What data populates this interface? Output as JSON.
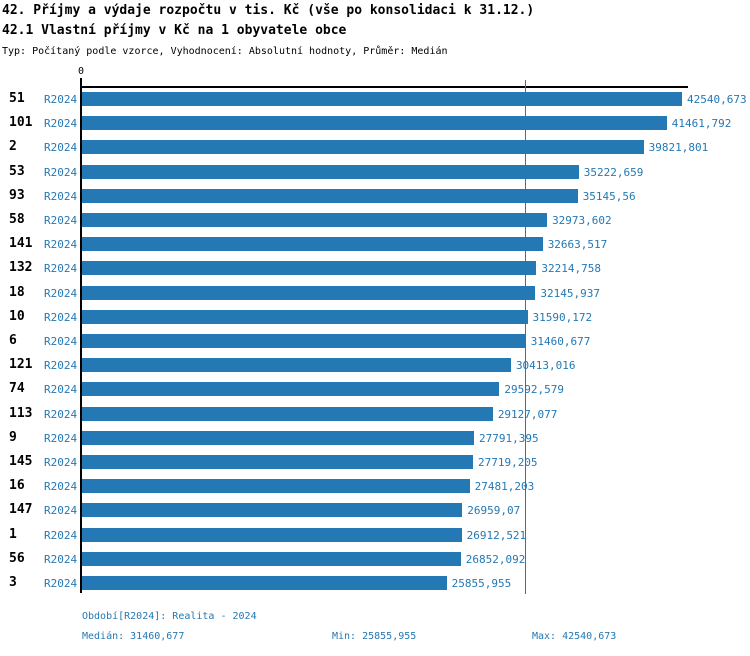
{
  "chart_data": {
    "type": "bar",
    "orientation": "horizontal",
    "title": "42. Příjmy a výdaje rozpočtu v tis. Kč (vše po konsolidaci k 31.12.)",
    "subtitle": "42.1 Vlastní příjmy v Kč na 1 obyvatele obce",
    "meta": "Typ: Počítaný podle vzorce, Vyhodnocení: Absolutní hodnoty, Průměr: Medián",
    "series_label": "R2024",
    "axis_zero_label": "0",
    "xlim": [
      0,
      42540.673
    ],
    "median_value": 31460.677,
    "min_value": 25855.955,
    "max_value": 42540.673,
    "bar_color": "#2478B4",
    "median_line_color": "#2478B4",
    "legend_position": "bottom",
    "grid": "median-line-only",
    "rows": [
      {
        "category": "51",
        "value": 42540.673,
        "label": "42540,673"
      },
      {
        "category": "101",
        "value": 41461.792,
        "label": "41461,792"
      },
      {
        "category": "2",
        "value": 39821.801,
        "label": "39821,801"
      },
      {
        "category": "53",
        "value": 35222.659,
        "label": "35222,659"
      },
      {
        "category": "93",
        "value": 35145.56,
        "label": "35145,56"
      },
      {
        "category": "58",
        "value": 32973.602,
        "label": "32973,602"
      },
      {
        "category": "141",
        "value": 32663.517,
        "label": "32663,517"
      },
      {
        "category": "132",
        "value": 32214.758,
        "label": "32214,758"
      },
      {
        "category": "18",
        "value": 32145.937,
        "label": "32145,937"
      },
      {
        "category": "10",
        "value": 31590.172,
        "label": "31590,172"
      },
      {
        "category": "6",
        "value": 31460.677,
        "label": "31460,677"
      },
      {
        "category": "121",
        "value": 30413.016,
        "label": "30413,016"
      },
      {
        "category": "74",
        "value": 29592.579,
        "label": "29592,579"
      },
      {
        "category": "113",
        "value": 29127.077,
        "label": "29127,077"
      },
      {
        "category": "9",
        "value": 27791.395,
        "label": "27791,395"
      },
      {
        "category": "145",
        "value": 27719.205,
        "label": "27719,205"
      },
      {
        "category": "16",
        "value": 27481.203,
        "label": "27481,203"
      },
      {
        "category": "147",
        "value": 26959.07,
        "label": "26959,07"
      },
      {
        "category": "1",
        "value": 26912.521,
        "label": "26912,521"
      },
      {
        "category": "56",
        "value": 26852.092,
        "label": "26852,092"
      },
      {
        "category": "3",
        "value": 25855.955,
        "label": "25855,955"
      }
    ]
  },
  "footer": {
    "period": "Období[R2024]: Realita - 2024",
    "median": "Medián: 31460,677",
    "min": "Min: 25855,955",
    "max": "Max: 42540,673"
  }
}
